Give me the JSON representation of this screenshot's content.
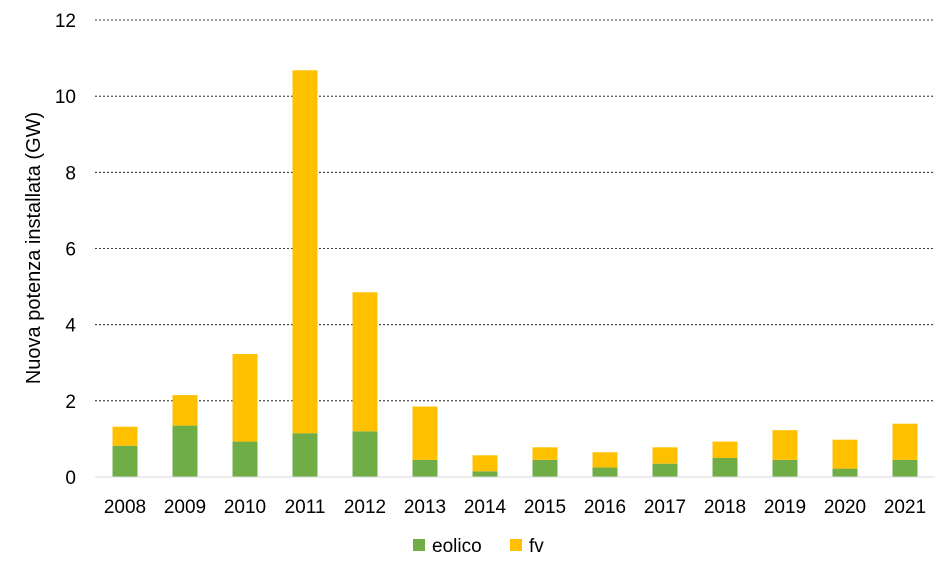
{
  "chart_data": {
    "type": "bar",
    "stacked": true,
    "categories": [
      "2008",
      "2009",
      "2010",
      "2011",
      "2012",
      "2013",
      "2014",
      "2015",
      "2016",
      "2017",
      "2018",
      "2019",
      "2020",
      "2021"
    ],
    "series": [
      {
        "name": "eolico",
        "color": "#70ad47",
        "values": [
          0.82,
          1.35,
          0.93,
          1.15,
          1.2,
          0.45,
          0.15,
          0.45,
          0.25,
          0.35,
          0.5,
          0.45,
          0.22,
          0.45
        ]
      },
      {
        "name": "fv",
        "color": "#ffc000",
        "values": [
          0.5,
          0.8,
          2.3,
          9.53,
          3.65,
          1.4,
          0.42,
          0.33,
          0.4,
          0.43,
          0.43,
          0.78,
          0.76,
          0.95
        ]
      }
    ],
    "title": "",
    "xlabel": "",
    "ylabel": "Nuova potenza installata (GW)",
    "ylim": [
      0,
      12
    ],
    "yticks": [
      0,
      2,
      4,
      6,
      8,
      10,
      12
    ],
    "grid": true,
    "gridline_style": "dashed",
    "legend_position": "bottom"
  }
}
